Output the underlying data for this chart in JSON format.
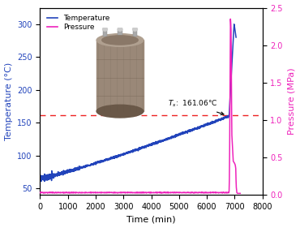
{
  "title": "",
  "xlabel": "Time (min)",
  "ylabel_left": "Temperature (°C)",
  "ylabel_right": "Pressure (MPa)",
  "temp_color": "#2244bb",
  "pressure_color": "#ee22bb",
  "dashed_line_color": "#ee2222",
  "dashed_line_y": 161.06,
  "annotation_text": "$T_{s}$:  161.06°C",
  "xlim": [
    0,
    8000
  ],
  "ylim_left": [
    40,
    325
  ],
  "ylim_right": [
    0.0,
    2.5
  ],
  "yticks_left": [
    50,
    100,
    150,
    200,
    250,
    300
  ],
  "yticks_right": [
    0.0,
    0.5,
    1.0,
    1.5,
    2.0,
    2.5
  ],
  "xticks": [
    0,
    1000,
    2000,
    3000,
    4000,
    5000,
    6000,
    7000,
    8000
  ],
  "legend_entries": [
    "Temperature",
    "Pressure"
  ],
  "figsize": [
    3.7,
    2.81
  ],
  "dpi": 100,
  "bg_color": "#ffffff",
  "pressure_flat_value": 0.03,
  "pressure_spike_x": 6850,
  "pressure_spike_max": 2.35,
  "pressure_after_spike": 0.4,
  "pressure_drop_x": 7100
}
